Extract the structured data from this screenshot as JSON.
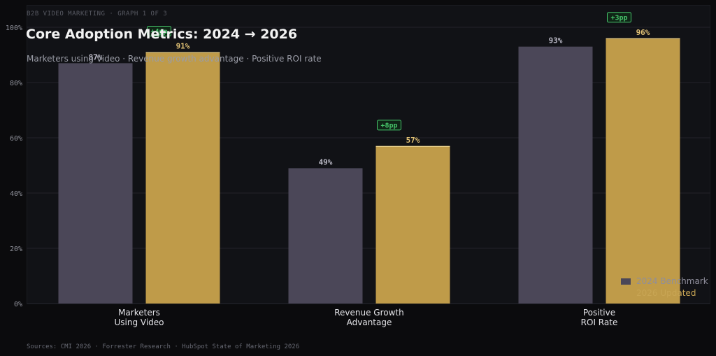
{
  "header": {
    "kicker": "B2B VIDEO MARKETING  ·  GRAPH 1 OF 3",
    "title": "Core Adoption Metrics: 2024 → 2026",
    "subtitle": "Marketers using Video · Revenue growth advantage · Positive ROI rate"
  },
  "footer": {
    "sources": "Sources: CMI 2026 · Forrester Research · HubSpot State of Marketing 2026"
  },
  "colors": {
    "bench": "#4b4758",
    "updated": "#bf9b49",
    "bench_label": "#b9b8c4",
    "updated_label": "#e2c275",
    "delta": "#46c46a",
    "grid": "#22232a",
    "tick": "#8f919a",
    "category": "#e4e4e8"
  },
  "chart_data": {
    "type": "bar",
    "title": "Core Adoption Metrics: 2024 → 2026",
    "subtitle": "Marketers using Video · Revenue growth advantage · Positive ROI rate",
    "categories": [
      [
        "Marketers",
        "Using Video"
      ],
      [
        "Revenue Growth",
        "Advantage"
      ],
      [
        "Positive",
        "ROI Rate"
      ]
    ],
    "series": [
      {
        "name": "2024 Benchmark",
        "values": [
          87,
          49,
          93
        ],
        "labels": [
          "87%",
          "49%",
          "93%"
        ]
      },
      {
        "name": "2026 Updated",
        "values": [
          91,
          57,
          96
        ],
        "labels": [
          "91%",
          "57%",
          "96%"
        ]
      }
    ],
    "deltas": [
      "+4pp",
      "+8pp",
      "+3pp"
    ],
    "ylim": [
      0,
      100
    ],
    "yticks": [
      "0%",
      "20%",
      "40%",
      "60%",
      "80%",
      "100%"
    ],
    "grid": true,
    "legend_position": "bottom-right"
  }
}
